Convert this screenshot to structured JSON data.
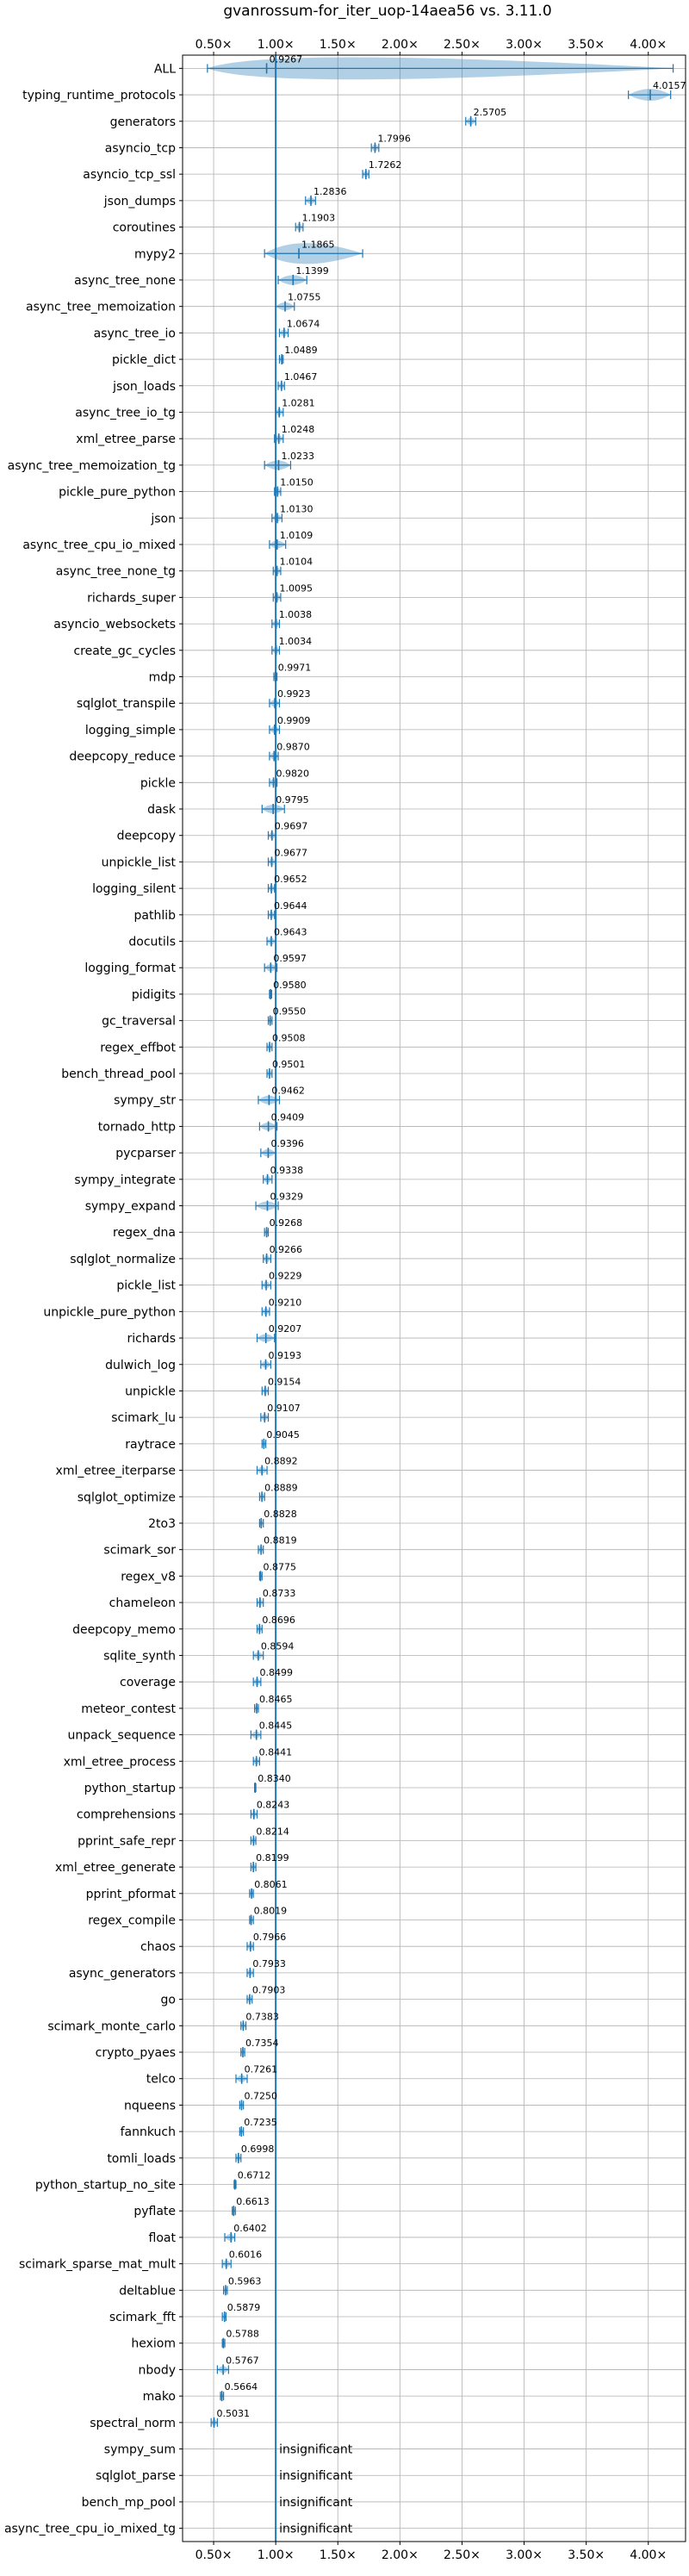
{
  "chart_data": {
    "type": "violin",
    "title": "gvanrossum-for_iter_uop-14aea56 vs. 3.11.0",
    "xlim": [
      0.25,
      4.3
    ],
    "xticks": [
      0.5,
      1.0,
      1.5,
      2.0,
      2.5,
      3.0,
      3.5,
      4.0
    ],
    "xtick_labels": [
      "0.50×",
      "1.00×",
      "1.50×",
      "2.00×",
      "2.50×",
      "3.00×",
      "3.50×",
      "4.00×"
    ],
    "reference_line": 1.0,
    "grid": true,
    "color": "#1f77b4",
    "rows": [
      {
        "name": "ALL",
        "median": 0.9267,
        "label": "0.9267",
        "lo": 0.45,
        "hi": 4.2
      },
      {
        "name": "typing_runtime_protocols",
        "median": 4.0157,
        "label": "4.0157",
        "lo": 3.84,
        "hi": 4.18
      },
      {
        "name": "generators",
        "median": 2.5705,
        "label": "2.5705",
        "lo": 2.53,
        "hi": 2.61
      },
      {
        "name": "asyncio_tcp",
        "median": 1.7996,
        "label": "1.7996",
        "lo": 1.77,
        "hi": 1.83
      },
      {
        "name": "asyncio_tcp_ssl",
        "median": 1.7262,
        "label": "1.7262",
        "lo": 1.7,
        "hi": 1.75
      },
      {
        "name": "json_dumps",
        "median": 1.2836,
        "label": "1.2836",
        "lo": 1.24,
        "hi": 1.32
      },
      {
        "name": "coroutines",
        "median": 1.1903,
        "label": "1.1903",
        "lo": 1.16,
        "hi": 1.22
      },
      {
        "name": "mypy2",
        "median": 1.1865,
        "label": "1.1865",
        "lo": 0.91,
        "hi": 1.7
      },
      {
        "name": "async_tree_none",
        "median": 1.1399,
        "label": "1.1399",
        "lo": 1.02,
        "hi": 1.25
      },
      {
        "name": "async_tree_memoization",
        "median": 1.0755,
        "label": "1.0755",
        "lo": 1.0,
        "hi": 1.15
      },
      {
        "name": "async_tree_io",
        "median": 1.0674,
        "label": "1.0674",
        "lo": 1.03,
        "hi": 1.1
      },
      {
        "name": "pickle_dict",
        "median": 1.0489,
        "label": "1.0489",
        "lo": 1.03,
        "hi": 1.06
      },
      {
        "name": "json_loads",
        "median": 1.0467,
        "label": "1.0467",
        "lo": 1.02,
        "hi": 1.07
      },
      {
        "name": "async_tree_io_tg",
        "median": 1.0281,
        "label": "1.0281",
        "lo": 1.0,
        "hi": 1.06
      },
      {
        "name": "xml_etree_parse",
        "median": 1.0248,
        "label": "1.0248",
        "lo": 0.99,
        "hi": 1.06
      },
      {
        "name": "async_tree_memoization_tg",
        "median": 1.0233,
        "label": "1.0233",
        "lo": 0.91,
        "hi": 1.12
      },
      {
        "name": "pickle_pure_python",
        "median": 1.015,
        "label": "1.0150",
        "lo": 0.99,
        "hi": 1.04
      },
      {
        "name": "json",
        "median": 1.013,
        "label": "1.0130",
        "lo": 0.97,
        "hi": 1.05
      },
      {
        "name": "async_tree_cpu_io_mixed",
        "median": 1.0109,
        "label": "1.0109",
        "lo": 0.95,
        "hi": 1.08
      },
      {
        "name": "async_tree_none_tg",
        "median": 1.0104,
        "label": "1.0104",
        "lo": 0.98,
        "hi": 1.04
      },
      {
        "name": "richards_super",
        "median": 1.0095,
        "label": "1.0095",
        "lo": 0.98,
        "hi": 1.04
      },
      {
        "name": "asyncio_websockets",
        "median": 1.0038,
        "label": "1.0038",
        "lo": 0.97,
        "hi": 1.03
      },
      {
        "name": "create_gc_cycles",
        "median": 1.0034,
        "label": "1.0034",
        "lo": 0.97,
        "hi": 1.03
      },
      {
        "name": "mdp",
        "median": 0.9971,
        "label": "0.9971",
        "lo": 0.985,
        "hi": 1.01
      },
      {
        "name": "sqlglot_transpile",
        "median": 0.9923,
        "label": "0.9923",
        "lo": 0.95,
        "hi": 1.03
      },
      {
        "name": "logging_simple",
        "median": 0.9909,
        "label": "0.9909",
        "lo": 0.95,
        "hi": 1.03
      },
      {
        "name": "deepcopy_reduce",
        "median": 0.987,
        "label": "0.9870",
        "lo": 0.95,
        "hi": 1.02
      },
      {
        "name": "pickle",
        "median": 0.982,
        "label": "0.9820",
        "lo": 0.95,
        "hi": 1.01
      },
      {
        "name": "dask",
        "median": 0.9795,
        "label": "0.9795",
        "lo": 0.89,
        "hi": 1.07
      },
      {
        "name": "deepcopy",
        "median": 0.9697,
        "label": "0.9697",
        "lo": 0.94,
        "hi": 1.0
      },
      {
        "name": "unpickle_list",
        "median": 0.9677,
        "label": "0.9677",
        "lo": 0.94,
        "hi": 1.0
      },
      {
        "name": "logging_silent",
        "median": 0.9652,
        "label": "0.9652",
        "lo": 0.94,
        "hi": 0.99
      },
      {
        "name": "pathlib",
        "median": 0.9644,
        "label": "0.9644",
        "lo": 0.94,
        "hi": 0.99
      },
      {
        "name": "docutils",
        "median": 0.9643,
        "label": "0.9643",
        "lo": 0.93,
        "hi": 1.0
      },
      {
        "name": "logging_format",
        "median": 0.9597,
        "label": "0.9597",
        "lo": 0.91,
        "hi": 1.01
      },
      {
        "name": "pidigits",
        "median": 0.958,
        "label": "0.9580",
        "lo": 0.95,
        "hi": 0.967
      },
      {
        "name": "gc_traversal",
        "median": 0.955,
        "label": "0.9550",
        "lo": 0.94,
        "hi": 0.97
      },
      {
        "name": "regex_effbot",
        "median": 0.9508,
        "label": "0.9508",
        "lo": 0.93,
        "hi": 0.97
      },
      {
        "name": "bench_thread_pool",
        "median": 0.9501,
        "label": "0.9501",
        "lo": 0.93,
        "hi": 0.97
      },
      {
        "name": "sympy_str",
        "median": 0.9462,
        "label": "0.9462",
        "lo": 0.86,
        "hi": 1.03
      },
      {
        "name": "tornado_http",
        "median": 0.9409,
        "label": "0.9409",
        "lo": 0.87,
        "hi": 1.01
      },
      {
        "name": "pycparser",
        "median": 0.9396,
        "label": "0.9396",
        "lo": 0.88,
        "hi": 1.0
      },
      {
        "name": "sympy_integrate",
        "median": 0.9338,
        "label": "0.9338",
        "lo": 0.9,
        "hi": 0.97
      },
      {
        "name": "sympy_expand",
        "median": 0.9329,
        "label": "0.9329",
        "lo": 0.84,
        "hi": 1.02
      },
      {
        "name": "regex_dna",
        "median": 0.9268,
        "label": "0.9268",
        "lo": 0.91,
        "hi": 0.94
      },
      {
        "name": "sqlglot_normalize",
        "median": 0.9266,
        "label": "0.9266",
        "lo": 0.9,
        "hi": 0.96
      },
      {
        "name": "pickle_list",
        "median": 0.9229,
        "label": "0.9229",
        "lo": 0.89,
        "hi": 0.96
      },
      {
        "name": "unpickle_pure_python",
        "median": 0.921,
        "label": "0.9210",
        "lo": 0.89,
        "hi": 0.95
      },
      {
        "name": "richards",
        "median": 0.9207,
        "label": "0.9207",
        "lo": 0.85,
        "hi": 0.99
      },
      {
        "name": "dulwich_log",
        "median": 0.9193,
        "label": "0.9193",
        "lo": 0.88,
        "hi": 0.96
      },
      {
        "name": "unpickle",
        "median": 0.9154,
        "label": "0.9154",
        "lo": 0.89,
        "hi": 0.94
      },
      {
        "name": "scimark_lu",
        "median": 0.9107,
        "label": "0.9107",
        "lo": 0.88,
        "hi": 0.94
      },
      {
        "name": "raytrace",
        "median": 0.9045,
        "label": "0.9045",
        "lo": 0.89,
        "hi": 0.92
      },
      {
        "name": "xml_etree_iterparse",
        "median": 0.8892,
        "label": "0.8892",
        "lo": 0.85,
        "hi": 0.93
      },
      {
        "name": "sqlglot_optimize",
        "median": 0.8889,
        "label": "0.8889",
        "lo": 0.87,
        "hi": 0.91
      },
      {
        "name": "2to3",
        "median": 0.8828,
        "label": "0.8828",
        "lo": 0.87,
        "hi": 0.9
      },
      {
        "name": "scimark_sor",
        "median": 0.8819,
        "label": "0.8819",
        "lo": 0.86,
        "hi": 0.9
      },
      {
        "name": "regex_v8",
        "median": 0.8775,
        "label": "0.8775",
        "lo": 0.87,
        "hi": 0.89
      },
      {
        "name": "chameleon",
        "median": 0.8733,
        "label": "0.8733",
        "lo": 0.85,
        "hi": 0.9
      },
      {
        "name": "deepcopy_memo",
        "median": 0.8696,
        "label": "0.8696",
        "lo": 0.85,
        "hi": 0.89
      },
      {
        "name": "sqlite_synth",
        "median": 0.8594,
        "label": "0.8594",
        "lo": 0.82,
        "hi": 0.9
      },
      {
        "name": "coverage",
        "median": 0.8499,
        "label": "0.8499",
        "lo": 0.82,
        "hi": 0.88
      },
      {
        "name": "meteor_contest",
        "median": 0.8465,
        "label": "0.8465",
        "lo": 0.83,
        "hi": 0.86
      },
      {
        "name": "unpack_sequence",
        "median": 0.8445,
        "label": "0.8445",
        "lo": 0.8,
        "hi": 0.88
      },
      {
        "name": "xml_etree_process",
        "median": 0.8441,
        "label": "0.8441",
        "lo": 0.82,
        "hi": 0.87
      },
      {
        "name": "python_startup",
        "median": 0.834,
        "label": "0.8340",
        "lo": 0.83,
        "hi": 0.84
      },
      {
        "name": "comprehensions",
        "median": 0.8243,
        "label": "0.8243",
        "lo": 0.8,
        "hi": 0.85
      },
      {
        "name": "pprint_safe_repr",
        "median": 0.8214,
        "label": "0.8214",
        "lo": 0.8,
        "hi": 0.84
      },
      {
        "name": "xml_etree_generate",
        "median": 0.8199,
        "label": "0.8199",
        "lo": 0.8,
        "hi": 0.84
      },
      {
        "name": "pprint_pformat",
        "median": 0.8061,
        "label": "0.8061",
        "lo": 0.79,
        "hi": 0.82
      },
      {
        "name": "regex_compile",
        "median": 0.8019,
        "label": "0.8019",
        "lo": 0.79,
        "hi": 0.82
      },
      {
        "name": "chaos",
        "median": 0.7966,
        "label": "0.7966",
        "lo": 0.77,
        "hi": 0.82
      },
      {
        "name": "async_generators",
        "median": 0.7933,
        "label": "0.7933",
        "lo": 0.77,
        "hi": 0.82
      },
      {
        "name": "go",
        "median": 0.7903,
        "label": "0.7903",
        "lo": 0.77,
        "hi": 0.81
      },
      {
        "name": "scimark_monte_carlo",
        "median": 0.7383,
        "label": "0.7383",
        "lo": 0.72,
        "hi": 0.76
      },
      {
        "name": "crypto_pyaes",
        "median": 0.7354,
        "label": "0.7354",
        "lo": 0.72,
        "hi": 0.75
      },
      {
        "name": "telco",
        "median": 0.7261,
        "label": "0.7261",
        "lo": 0.68,
        "hi": 0.77
      },
      {
        "name": "nqueens",
        "median": 0.725,
        "label": "0.7250",
        "lo": 0.71,
        "hi": 0.74
      },
      {
        "name": "fannkuch",
        "median": 0.7235,
        "label": "0.7235",
        "lo": 0.71,
        "hi": 0.74
      },
      {
        "name": "tomli_loads",
        "median": 0.6998,
        "label": "0.6998",
        "lo": 0.68,
        "hi": 0.72
      },
      {
        "name": "python_startup_no_site",
        "median": 0.6712,
        "label": "0.6712",
        "lo": 0.665,
        "hi": 0.68
      },
      {
        "name": "pyflate",
        "median": 0.6613,
        "label": "0.6613",
        "lo": 0.65,
        "hi": 0.675
      },
      {
        "name": "float",
        "median": 0.6402,
        "label": "0.6402",
        "lo": 0.59,
        "hi": 0.67
      },
      {
        "name": "scimark_sparse_mat_mult",
        "median": 0.6016,
        "label": "0.6016",
        "lo": 0.57,
        "hi": 0.64
      },
      {
        "name": "deltablue",
        "median": 0.5963,
        "label": "0.5963",
        "lo": 0.58,
        "hi": 0.61
      },
      {
        "name": "scimark_fft",
        "median": 0.5879,
        "label": "0.5879",
        "lo": 0.57,
        "hi": 0.6
      },
      {
        "name": "hexiom",
        "median": 0.5788,
        "label": "0.5788",
        "lo": 0.57,
        "hi": 0.59
      },
      {
        "name": "nbody",
        "median": 0.5767,
        "label": "0.5767",
        "lo": 0.53,
        "hi": 0.62
      },
      {
        "name": "mako",
        "median": 0.5664,
        "label": "0.5664",
        "lo": 0.555,
        "hi": 0.58
      },
      {
        "name": "spectral_norm",
        "median": 0.5031,
        "label": "0.5031",
        "lo": 0.48,
        "hi": 0.53
      },
      {
        "name": "sympy_sum",
        "median": null,
        "label": "insignificant"
      },
      {
        "name": "sqlglot_parse",
        "median": null,
        "label": "insignificant"
      },
      {
        "name": "bench_mp_pool",
        "median": null,
        "label": "insignificant"
      },
      {
        "name": "async_tree_cpu_io_mixed_tg",
        "median": null,
        "label": "insignificant"
      }
    ]
  }
}
